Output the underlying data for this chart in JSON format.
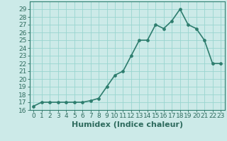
{
  "x": [
    0,
    1,
    2,
    3,
    4,
    5,
    6,
    7,
    8,
    9,
    10,
    11,
    12,
    13,
    14,
    15,
    16,
    17,
    18,
    19,
    20,
    21,
    22,
    23
  ],
  "y": [
    16.5,
    17.0,
    17.0,
    17.0,
    17.0,
    17.0,
    17.0,
    17.2,
    17.5,
    19.0,
    20.5,
    21.0,
    23.0,
    25.0,
    25.0,
    27.0,
    26.5,
    27.5,
    29.0,
    27.0,
    26.5,
    25.0,
    22.0,
    22.0
  ],
  "line_color": "#2e7d6e",
  "marker_color": "#2e7d6e",
  "bg_color": "#cceae8",
  "grid_color": "#99d5d0",
  "xlabel": "Humidex (Indice chaleur)",
  "xlim": [
    -0.5,
    23.5
  ],
  "ylim": [
    16,
    30
  ],
  "yticks": [
    16,
    17,
    18,
    19,
    20,
    21,
    22,
    23,
    24,
    25,
    26,
    27,
    28,
    29
  ],
  "xticks": [
    0,
    1,
    2,
    3,
    4,
    5,
    6,
    7,
    8,
    9,
    10,
    11,
    12,
    13,
    14,
    15,
    16,
    17,
    18,
    19,
    20,
    21,
    22,
    23
  ],
  "xtick_labels": [
    "0",
    "1",
    "2",
    "3",
    "4",
    "5",
    "6",
    "7",
    "8",
    "9",
    "10",
    "11",
    "12",
    "13",
    "14",
    "15",
    "16",
    "17",
    "18",
    "19",
    "20",
    "21",
    "22",
    "23"
  ],
  "ytick_labels": [
    "16",
    "17",
    "18",
    "19",
    "20",
    "21",
    "22",
    "23",
    "24",
    "25",
    "26",
    "27",
    "28",
    "29"
  ],
  "font_color": "#2e6b5e",
  "xlabel_fontsize": 8,
  "tick_fontsize": 6.5,
  "linewidth": 1.2,
  "markersize": 2.8,
  "spine_color": "#2e7d6e"
}
